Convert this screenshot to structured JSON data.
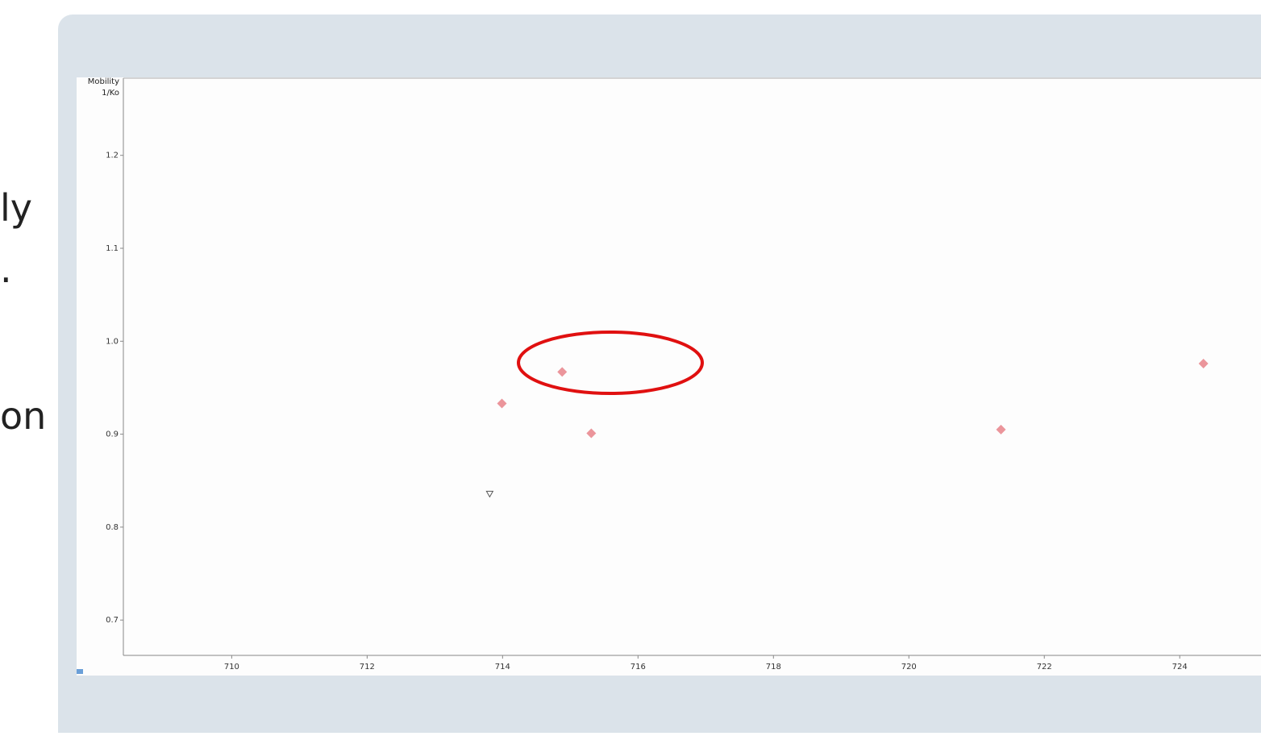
{
  "slide_text_fragments": [
    "ly",
    ".",
    "on"
  ],
  "chart_data": {
    "type": "scatter",
    "y_label_lines": [
      "Mobility",
      "1/Ko"
    ],
    "x": [
      713.99,
      714.88,
      715.31,
      721.36,
      724.35
    ],
    "values": [
      0.933,
      0.967,
      0.901,
      0.905,
      0.976
    ],
    "color": "#e8828a",
    "triangle": {
      "x": 713.81,
      "y": 0.836
    },
    "xlim": [
      708.4,
      725.2
    ],
    "ylim": [
      0.662,
      1.283
    ],
    "xticks": [
      710,
      712,
      714,
      716,
      718,
      720,
      722,
      724
    ],
    "yticks": [
      0.7,
      0.8,
      0.9,
      {
        "value": 1.0,
        "label": "1.0"
      },
      1.1,
      1.2
    ]
  }
}
